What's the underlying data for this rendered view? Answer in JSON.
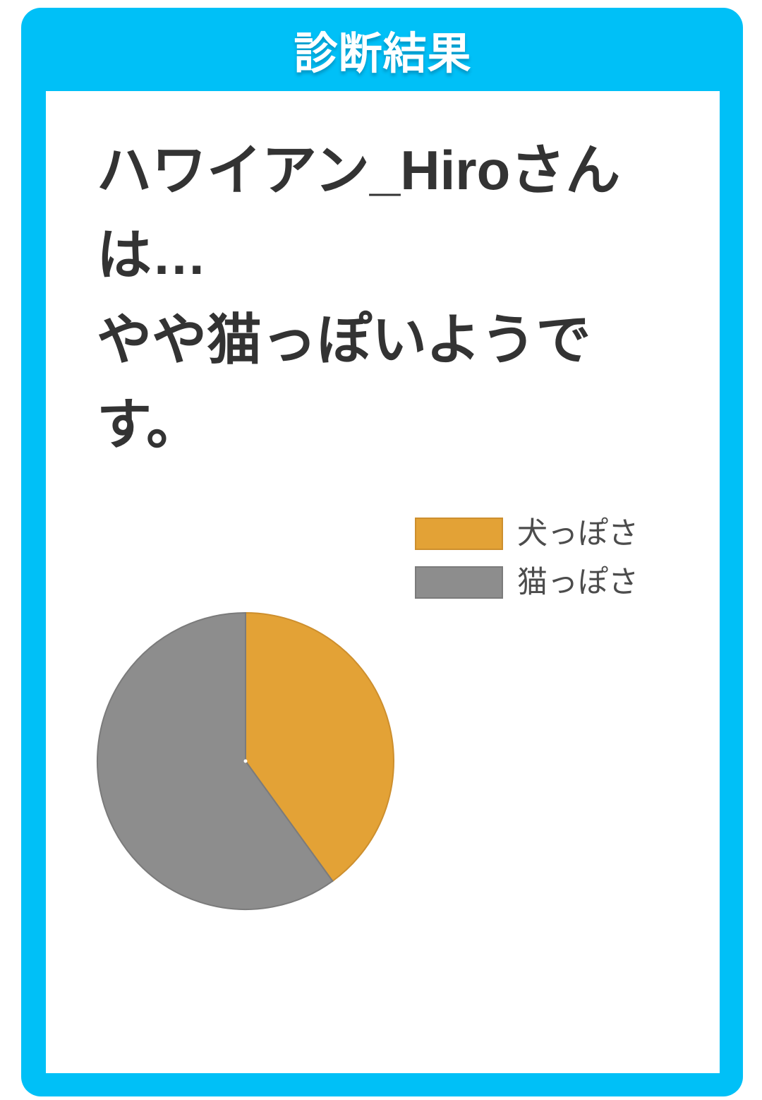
{
  "header": {
    "title": "診断結果"
  },
  "result": {
    "line1": "ハワイアン_Hiroさんは…",
    "line2": "やや猫っぽいようです。"
  },
  "chart_data": {
    "type": "pie",
    "labels": [
      "犬っぽさ",
      "猫っぽさ"
    ],
    "values": [
      40,
      60
    ],
    "unit": "percent",
    "colors": [
      "#e3a236",
      "#8d8d8d"
    ],
    "stroke_colors": [
      "#cd8f2e",
      "#7b7b7b"
    ],
    "start_angle_deg": 0,
    "direction": "clockwise",
    "legend_position": "right-above-chart",
    "title": ""
  },
  "colors": {
    "frame_cyan": "#00c0f7",
    "card_bg": "#ffffff",
    "title_text": "#ffffff",
    "body_text": "#333333",
    "legend_text": "#4c4c4c"
  }
}
